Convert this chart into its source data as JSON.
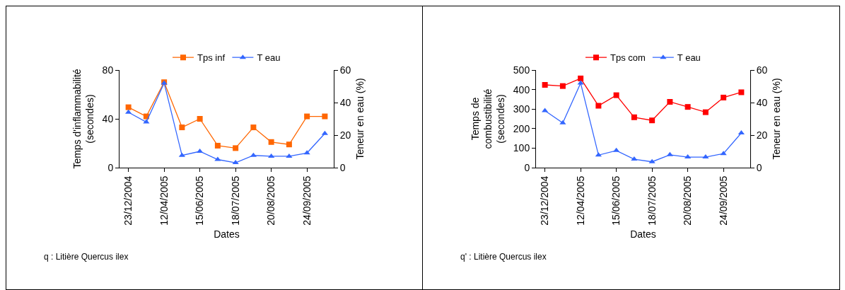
{
  "chart_data": [
    {
      "type": "line",
      "xlabel": "Dates",
      "ylabel": "Temps d'inflammabilité\n(secondes)",
      "y2label": "Teneur en eau (%)",
      "categories": [
        "23/12/2004",
        null,
        "12/04/2005",
        null,
        "15/06/2005",
        null,
        "18/07/2005",
        null,
        "20/08/2005",
        null,
        "24/09/2005",
        null
      ],
      "series": [
        {
          "name": "Tps inf",
          "color": "#ff6600",
          "marker": "square",
          "values": [
            49.5,
            42,
            70,
            33,
            40,
            18,
            16,
            33,
            21,
            19,
            42,
            42
          ]
        },
        {
          "name": "T eau",
          "color": "#3366ff",
          "marker": "triangle",
          "axis": "y2",
          "values": [
            34,
            28,
            52,
            7.5,
            10,
            5,
            3,
            7.5,
            7,
            7,
            9,
            21
          ]
        }
      ],
      "ylim": [
        0,
        80
      ],
      "yticks": [
        0,
        40,
        80
      ],
      "y2lim": [
        0,
        60
      ],
      "y2ticks": [
        0,
        20,
        40,
        60
      ],
      "grid": false,
      "legend": "top",
      "annotations": [
        "q : Litière Quercus ilex"
      ]
    },
    {
      "type": "line",
      "xlabel": "Dates",
      "ylabel": "Temps de\ncombustibilité\n(secondes)",
      "y2label": "Teneur en eau (%)",
      "categories": [
        "23/12/2004",
        null,
        "12/04/2005",
        null,
        "15/06/2005",
        null,
        "18/07/2005",
        null,
        "20/08/2005",
        null,
        "24/09/2005",
        null
      ],
      "series": [
        {
          "name": "Tps com",
          "color": "#ff0000",
          "marker": "square",
          "values": [
            424,
            418,
            457,
            317,
            371,
            258,
            242,
            337,
            311,
            284,
            359,
            386
          ]
        },
        {
          "name": "T eau",
          "color": "#3366ff",
          "marker": "triangle",
          "axis": "y2",
          "values": [
            35,
            27.5,
            52,
            7.7,
            10.5,
            5.2,
            3.6,
            7.9,
            6.5,
            6.5,
            8.6,
            21.3
          ]
        }
      ],
      "ylim": [
        0,
        500
      ],
      "yticks": [
        0,
        100,
        200,
        300,
        400,
        500
      ],
      "y2lim": [
        0,
        60
      ],
      "y2ticks": [
        0,
        20,
        40,
        60
      ],
      "grid": false,
      "legend": "top",
      "annotations": [
        "q' : Litière Quercus ilex"
      ]
    }
  ]
}
